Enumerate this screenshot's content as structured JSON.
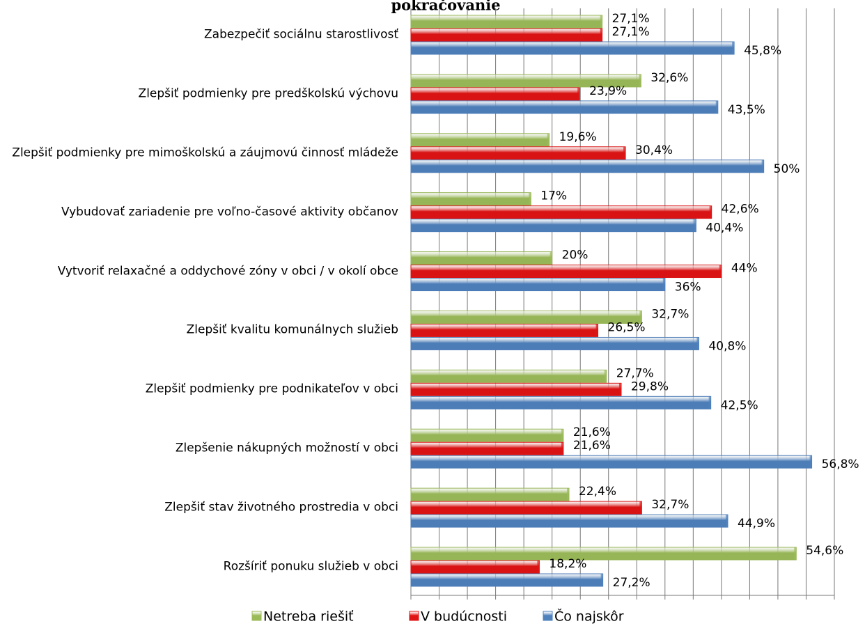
{
  "chart_data": {
    "type": "bar",
    "orientation": "horizontal",
    "title": "pokračovanie",
    "categories": [
      "Zabezpečiť sociálnu starostlivosť",
      "Zlepšiť podmienky pre predškolskú výchovu",
      "Zlepšiť podmienky pre mimoškolskú a záujmovú činnosť mládeže",
      "Vybudovať zariadenie pre voľno-časové aktivity občanov",
      "Vytvoriť relaxačné a oddychové zóny v obci / v okolí obce",
      "Zlepšiť kvalitu komunálnych služieb",
      "Zlepšiť podmienky pre podnikateľov v obci",
      "Zlepšenie nákupných možností v obci",
      "Zlepšiť stav životného prostredia v obci",
      "Rozšíriť ponuku služieb v obci"
    ],
    "series": [
      {
        "name": "Netreba riešiť",
        "color": "#9bbb59",
        "values": [
          27.1,
          32.6,
          19.6,
          17,
          20,
          32.7,
          27.7,
          21.6,
          22.4,
          54.6
        ],
        "value_labels": [
          "27,1%",
          "32,6%",
          "19,6%",
          "17%",
          "20%",
          "32,7%",
          "27,7%",
          "21,6%",
          "22,4%",
          "54,6%"
        ]
      },
      {
        "name": "V budúcnosti",
        "color": "#e01414",
        "values": [
          27.1,
          23.9,
          30.4,
          42.6,
          44,
          26.5,
          29.8,
          21.6,
          32.7,
          18.2
        ],
        "value_labels": [
          "27,1%",
          "23,9%",
          "30,4%",
          "42,6%",
          "44%",
          "26,5%",
          "29,8%",
          "21,6%",
          "32,7%",
          "18,2%"
        ]
      },
      {
        "name": "Čo najskôr",
        "color": "#4f81bd",
        "values": [
          45.8,
          43.5,
          50,
          40.4,
          36,
          40.8,
          42.5,
          56.8,
          44.9,
          27.2
        ],
        "value_labels": [
          "45,8%",
          "43,5%",
          "50%",
          "40,4%",
          "36%",
          "40,8%",
          "42,5%",
          "56,8%",
          "44,9%",
          "27,2%"
        ]
      }
    ],
    "xlim": [
      0,
      60
    ],
    "xticks": [
      0,
      4,
      8,
      12,
      16,
      20,
      24,
      28,
      32,
      36,
      40,
      44,
      48,
      52,
      56,
      60
    ],
    "grid": true,
    "legend": "bottom"
  }
}
